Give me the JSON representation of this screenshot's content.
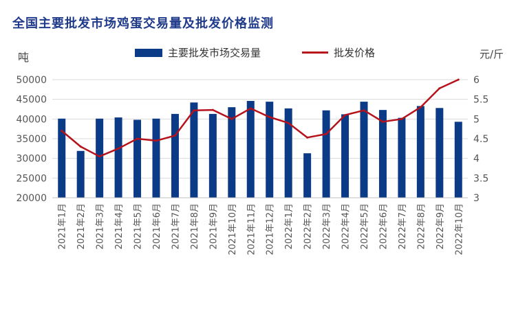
{
  "chart_data": {
    "type": "bar",
    "title": "全国主要批发市场鸡蛋交易量及批发价格监测",
    "ylabel": "吨",
    "y2label": "元/斤",
    "ylim": [
      20000,
      50000
    ],
    "y2lim": [
      3,
      6
    ],
    "yticks": [
      "20000",
      "25000",
      "30000",
      "35000",
      "40000",
      "45000",
      "50000"
    ],
    "y2ticks": [
      "3",
      "3.5",
      "4",
      "4.5",
      "5",
      "5.5",
      "6"
    ],
    "legend_position": "top",
    "categories": [
      "2021年1月",
      "2021年2月",
      "2021年3月",
      "2021年4月",
      "2021年5月",
      "2021年6月",
      "2021年7月",
      "2021年8月",
      "2021年9月",
      "2021年10月",
      "2021年11月",
      "2021年12月",
      "2022年1月",
      "2022年2月",
      "2022年3月",
      "2022年4月",
      "2022年5月",
      "2022年6月",
      "2022年7月",
      "2022年8月",
      "2022年9月",
      "2022年10月"
    ],
    "series": [
      {
        "name": "主要批发市场交易量",
        "type": "bar",
        "axis": "left",
        "color": "#0b3a86",
        "values": [
          40100,
          31900,
          40100,
          40400,
          39800,
          40100,
          41300,
          44200,
          41300,
          43000,
          44600,
          44400,
          42700,
          31300,
          42200,
          41200,
          44400,
          42300,
          40300,
          43300,
          42800,
          39300
        ]
      },
      {
        "name": "批发价格",
        "type": "line",
        "axis": "right",
        "color": "#b5121b",
        "values": [
          4.7,
          4.3,
          4.05,
          4.25,
          4.5,
          4.45,
          4.58,
          5.22,
          5.23,
          5.0,
          5.27,
          5.05,
          4.9,
          4.53,
          4.62,
          5.1,
          5.22,
          4.93,
          5.0,
          5.3,
          5.78,
          6.0
        ]
      }
    ]
  }
}
